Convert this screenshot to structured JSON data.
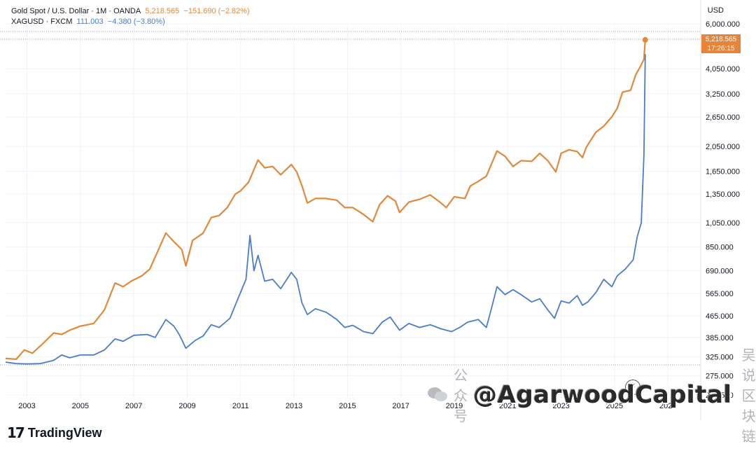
{
  "legend": {
    "gold": {
      "symbol": "Gold Spot / U.S. Dollar · 1M · OANDA",
      "value": "5,218.565",
      "change": "−151.690 (−2.82%)"
    },
    "silver": {
      "symbol": "XAGUSD · FXCM",
      "value": "111.003",
      "change": "−4.380 (−3.80%)"
    }
  },
  "currency": "USD",
  "price_tag": {
    "value": "5,218.565",
    "time": "17:26:15"
  },
  "logo": {
    "text": "TradingView",
    "mark": "17"
  },
  "watermark": {
    "prefix": "公众号",
    "brand": "@AgarwoodCapital",
    "suffix": "吴说区块链"
  },
  "colors": {
    "gold": "#e0893d",
    "silver": "#4a7cc9",
    "grid": "#f0f3fa",
    "tag": "#e8833a"
  },
  "chart_data": {
    "type": "line",
    "y_scale": "log",
    "ylim": [
      232.5,
      6000
    ],
    "xlim": [
      2002.2,
      2028.2
    ],
    "y_ticks": [
      232.5,
      275,
      325,
      385,
      465,
      565,
      690,
      850,
      1050,
      1350,
      1650,
      2050,
      2650,
      3250,
      4050,
      6000
    ],
    "y_tick_labels": [
      "232.500",
      "275.000",
      "325.000",
      "385.000",
      "465.000",
      "565.000",
      "690.000",
      "850.000",
      "1,050.000",
      "1,350.000",
      "1,650.000",
      "2,050.000",
      "2,650.000",
      "3,250.000",
      "4,050.000",
      "6,000.000"
    ],
    "x_ticks": [
      2003,
      2005,
      2007,
      2009,
      2011,
      2013,
      2015,
      2017,
      2019,
      2021,
      2023,
      2025,
      2027
    ],
    "x_tick_labels": [
      "2003",
      "2005",
      "2007",
      "2009",
      "2011",
      "2013",
      "2015",
      "2017",
      "2019",
      "2021",
      "2023",
      "2025",
      "2027"
    ],
    "series": [
      {
        "name": "Gold Spot / U.S. Dollar",
        "color": "#e0893d",
        "points": [
          [
            2002.2,
            320
          ],
          [
            2002.6,
            318
          ],
          [
            2002.9,
            345
          ],
          [
            2003.2,
            335
          ],
          [
            2003.6,
            365
          ],
          [
            2004.0,
            400
          ],
          [
            2004.3,
            395
          ],
          [
            2004.6,
            410
          ],
          [
            2005.0,
            425
          ],
          [
            2005.5,
            435
          ],
          [
            2005.9,
            490
          ],
          [
            2006.3,
            620
          ],
          [
            2006.6,
            600
          ],
          [
            2006.9,
            630
          ],
          [
            2007.3,
            660
          ],
          [
            2007.6,
            700
          ],
          [
            2007.9,
            820
          ],
          [
            2008.2,
            960
          ],
          [
            2008.5,
            890
          ],
          [
            2008.8,
            830
          ],
          [
            2008.95,
            720
          ],
          [
            2009.2,
            900
          ],
          [
            2009.6,
            960
          ],
          [
            2009.9,
            1100
          ],
          [
            2010.2,
            1120
          ],
          [
            2010.5,
            1200
          ],
          [
            2010.8,
            1350
          ],
          [
            2011.0,
            1390
          ],
          [
            2011.3,
            1500
          ],
          [
            2011.65,
            1820
          ],
          [
            2011.9,
            1700
          ],
          [
            2012.2,
            1720
          ],
          [
            2012.5,
            1600
          ],
          [
            2012.9,
            1750
          ],
          [
            2013.1,
            1640
          ],
          [
            2013.3,
            1450
          ],
          [
            2013.5,
            1250
          ],
          [
            2013.8,
            1300
          ],
          [
            2014.2,
            1300
          ],
          [
            2014.6,
            1280
          ],
          [
            2014.9,
            1200
          ],
          [
            2015.2,
            1200
          ],
          [
            2015.6,
            1130
          ],
          [
            2015.95,
            1060
          ],
          [
            2016.2,
            1230
          ],
          [
            2016.5,
            1330
          ],
          [
            2016.8,
            1270
          ],
          [
            2016.95,
            1150
          ],
          [
            2017.3,
            1260
          ],
          [
            2017.7,
            1290
          ],
          [
            2018.1,
            1340
          ],
          [
            2018.5,
            1250
          ],
          [
            2018.7,
            1200
          ],
          [
            2019.0,
            1320
          ],
          [
            2019.4,
            1300
          ],
          [
            2019.6,
            1450
          ],
          [
            2019.9,
            1510
          ],
          [
            2020.2,
            1580
          ],
          [
            2020.6,
            1970
          ],
          [
            2020.9,
            1880
          ],
          [
            2021.2,
            1720
          ],
          [
            2021.5,
            1810
          ],
          [
            2021.9,
            1800
          ],
          [
            2022.2,
            1930
          ],
          [
            2022.5,
            1810
          ],
          [
            2022.8,
            1640
          ],
          [
            2023.0,
            1930
          ],
          [
            2023.3,
            1990
          ],
          [
            2023.6,
            1960
          ],
          [
            2023.8,
            1860
          ],
          [
            2023.95,
            2040
          ],
          [
            2024.3,
            2320
          ],
          [
            2024.6,
            2450
          ],
          [
            2024.9,
            2660
          ],
          [
            2025.1,
            2860
          ],
          [
            2025.3,
            3300
          ],
          [
            2025.6,
            3350
          ],
          [
            2025.8,
            3850
          ],
          [
            2025.95,
            4100
          ],
          [
            2026.1,
            4400
          ],
          [
            2026.15,
            5218
          ]
        ]
      },
      {
        "name": "XAGUSD",
        "color": "#4a7cc9",
        "points": [
          [
            2002.2,
            310
          ],
          [
            2002.6,
            306
          ],
          [
            2003.0,
            305
          ],
          [
            2003.5,
            306
          ],
          [
            2004.0,
            315
          ],
          [
            2004.3,
            330
          ],
          [
            2004.6,
            322
          ],
          [
            2005.0,
            330
          ],
          [
            2005.5,
            330
          ],
          [
            2005.9,
            345
          ],
          [
            2006.3,
            380
          ],
          [
            2006.6,
            372
          ],
          [
            2007.0,
            392
          ],
          [
            2007.5,
            395
          ],
          [
            2007.8,
            385
          ],
          [
            2008.2,
            450
          ],
          [
            2008.5,
            425
          ],
          [
            2008.7,
            395
          ],
          [
            2008.95,
            350
          ],
          [
            2009.3,
            375
          ],
          [
            2009.6,
            390
          ],
          [
            2009.9,
            430
          ],
          [
            2010.2,
            420
          ],
          [
            2010.6,
            455
          ],
          [
            2010.9,
            540
          ],
          [
            2011.2,
            640
          ],
          [
            2011.35,
            940
          ],
          [
            2011.5,
            690
          ],
          [
            2011.65,
            790
          ],
          [
            2011.9,
            630
          ],
          [
            2012.2,
            640
          ],
          [
            2012.5,
            590
          ],
          [
            2012.9,
            680
          ],
          [
            2013.1,
            640
          ],
          [
            2013.3,
            520
          ],
          [
            2013.5,
            470
          ],
          [
            2013.8,
            495
          ],
          [
            2014.2,
            480
          ],
          [
            2014.6,
            450
          ],
          [
            2014.9,
            420
          ],
          [
            2015.2,
            428
          ],
          [
            2015.6,
            405
          ],
          [
            2015.95,
            398
          ],
          [
            2016.3,
            440
          ],
          [
            2016.6,
            460
          ],
          [
            2016.95,
            410
          ],
          [
            2017.3,
            435
          ],
          [
            2017.7,
            420
          ],
          [
            2018.1,
            430
          ],
          [
            2018.5,
            415
          ],
          [
            2018.9,
            405
          ],
          [
            2019.2,
            420
          ],
          [
            2019.5,
            440
          ],
          [
            2019.9,
            450
          ],
          [
            2020.2,
            420
          ],
          [
            2020.4,
            500
          ],
          [
            2020.6,
            600
          ],
          [
            2020.9,
            560
          ],
          [
            2021.2,
            585
          ],
          [
            2021.5,
            560
          ],
          [
            2021.9,
            525
          ],
          [
            2022.2,
            540
          ],
          [
            2022.5,
            490
          ],
          [
            2022.75,
            455
          ],
          [
            2023.0,
            530
          ],
          [
            2023.3,
            520
          ],
          [
            2023.6,
            555
          ],
          [
            2023.8,
            510
          ],
          [
            2024.0,
            525
          ],
          [
            2024.3,
            570
          ],
          [
            2024.6,
            640
          ],
          [
            2024.9,
            600
          ],
          [
            2025.1,
            660
          ],
          [
            2025.4,
            700
          ],
          [
            2025.7,
            760
          ],
          [
            2025.85,
            930
          ],
          [
            2026.0,
            1050
          ],
          [
            2026.1,
            1900
          ],
          [
            2026.15,
            4600
          ]
        ]
      }
    ]
  }
}
